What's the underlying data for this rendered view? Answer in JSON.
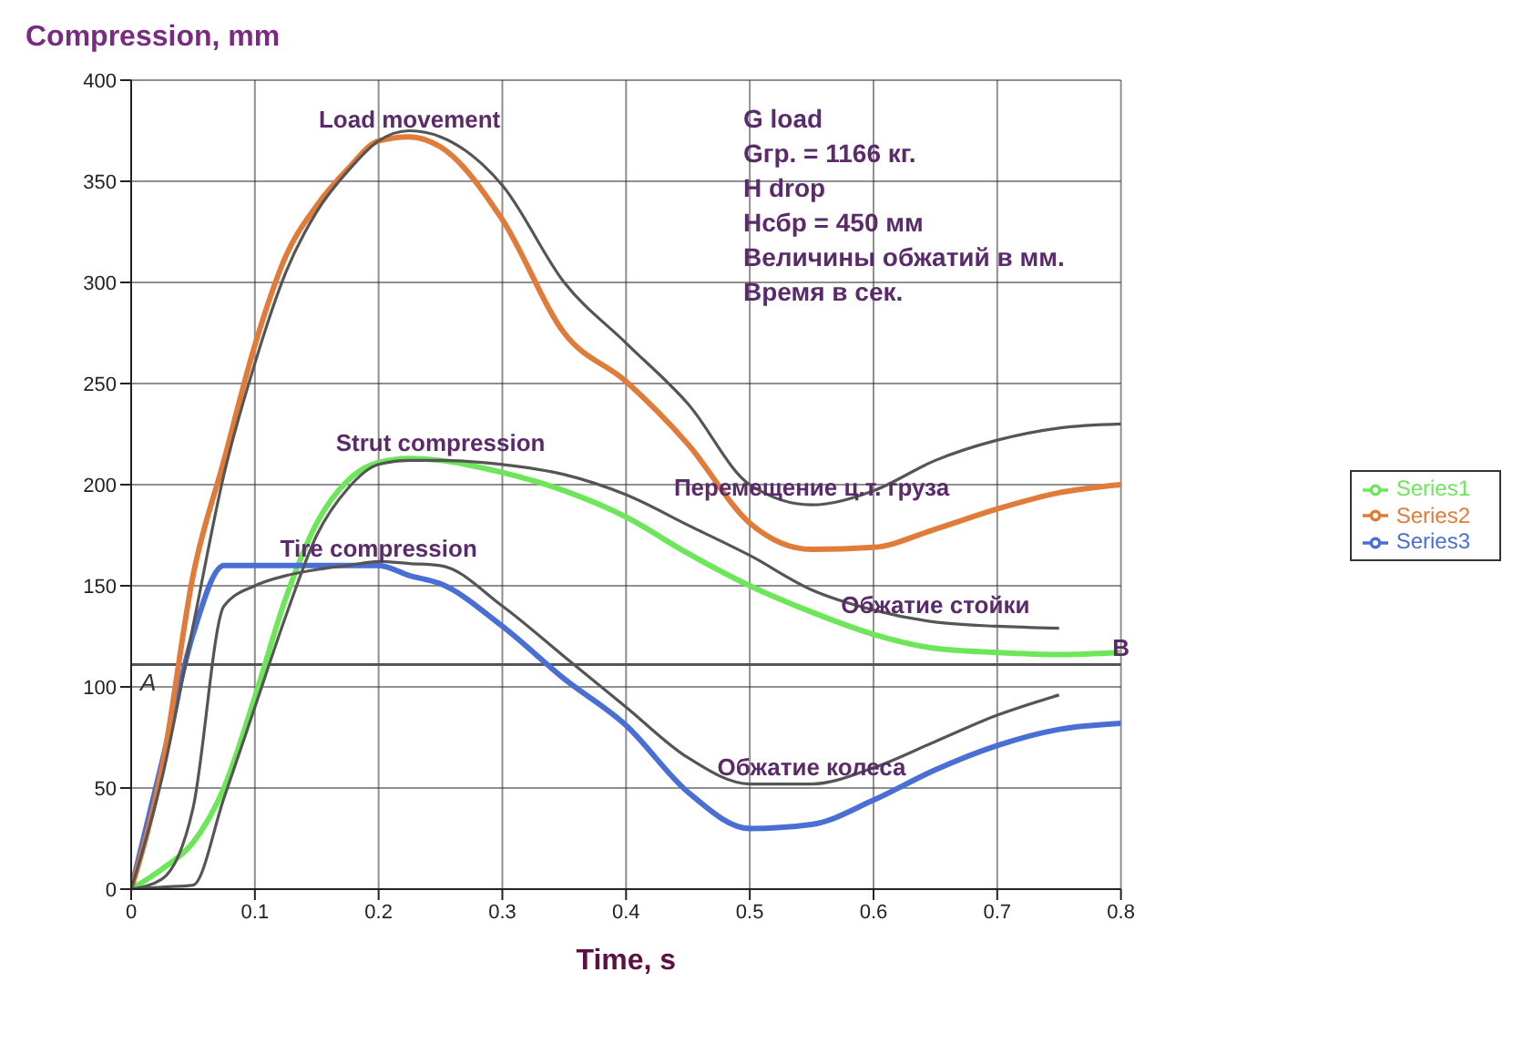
{
  "chart_data": {
    "type": "line",
    "ylabel": "Compression, mm",
    "xlabel": "Time, s",
    "x": [
      0,
      0.025,
      0.05,
      0.075,
      0.1,
      0.125,
      0.15,
      0.175,
      0.2,
      0.225,
      0.25,
      0.3,
      0.35,
      0.4,
      0.45,
      0.5,
      0.55,
      0.6,
      0.65,
      0.7,
      0.75,
      0.8
    ],
    "series": [
      {
        "name": "Series1",
        "color": "#6ee65a",
        "values": [
          0,
          10,
          23,
          50,
          95,
          144,
          181,
          202,
          211,
          213,
          212,
          206,
          197,
          184,
          166,
          150,
          137,
          126,
          119,
          117,
          116,
          117
        ]
      },
      {
        "name": "Series3",
        "color": "#4a6fd4",
        "values": [
          0,
          63,
          126,
          160,
          160,
          160,
          160,
          160,
          160,
          155,
          151,
          130,
          104,
          81,
          48,
          30,
          32,
          44,
          59,
          71,
          79,
          82
        ]
      },
      {
        "name": "Series2",
        "color": "#e07b39",
        "values": [
          0,
          60,
          155,
          212,
          269,
          313,
          338,
          356,
          370,
          372,
          367,
          331,
          275,
          251,
          220,
          181,
          168,
          169,
          178,
          188,
          196,
          200
        ]
      },
      {
        "color": "#555555",
        "values": [
          0,
          55,
          130,
          205,
          260,
          305,
          335,
          355,
          370,
          375,
          372,
          348,
          300,
          270,
          240,
          200,
          190,
          197,
          212,
          222,
          228,
          230
        ]
      },
      {
        "color": "#555555",
        "values": [
          0,
          1,
          2,
          45,
          90,
          135,
          175,
          198,
          210,
          212,
          212,
          210,
          205,
          195,
          180,
          165,
          148,
          138,
          132,
          130,
          129,
          null
        ]
      },
      {
        "color": "#555555",
        "values": [
          0,
          5,
          40,
          140,
          150,
          155,
          158,
          160,
          162,
          161,
          160,
          140,
          115,
          90,
          65,
          52,
          52,
          60,
          73,
          86,
          96,
          null
        ]
      }
    ],
    "xlim": [
      0,
      0.8
    ],
    "xticks": [
      0,
      0.1,
      0.2,
      0.3,
      0.4,
      0.5,
      0.6,
      0.7,
      0.8
    ],
    "ylim": [
      0,
      400
    ],
    "yticks": [
      0,
      50,
      100,
      150,
      200,
      250,
      300,
      350,
      400
    ],
    "grid": true,
    "legend": "right",
    "marker": "none",
    "line_style": "solid",
    "ref_lines": [
      {
        "axis": "y",
        "value": 111,
        "label": "A",
        "color": "#555555"
      }
    ],
    "annotations": [
      {
        "text": "Load movement",
        "x": 0.225,
        "y": 372
      },
      {
        "text": "Strut compression",
        "x": 0.25,
        "y": 212
      },
      {
        "text": "Tire compression",
        "x": 0.2,
        "y": 160
      },
      {
        "text": "Перемещение ц.т. груза",
        "x": 0.55,
        "y": 190
      },
      {
        "text": "Обжатие стойки",
        "x": 0.65,
        "y": 132
      },
      {
        "text": "Обжатие колеса",
        "x": 0.55,
        "y": 52
      },
      {
        "text": "B",
        "x": 0.8,
        "y": 111
      },
      "G load",
      "Gгр. = 1166 кг.",
      "H drop",
      "Hсбр = 450 мм",
      "Величины обжатий в мм.",
      "Время в сек."
    ]
  }
}
